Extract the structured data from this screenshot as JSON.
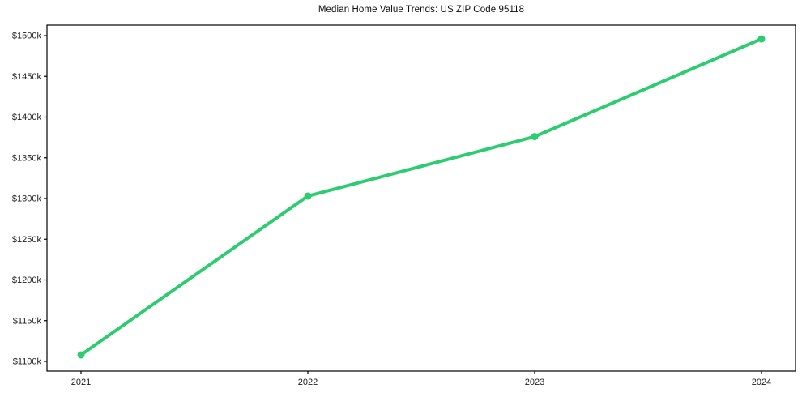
{
  "chart_data": {
    "type": "line",
    "title": "Median Home Value Trends: US ZIP Code 95118",
    "categories": [
      "2021",
      "2022",
      "2023",
      "2024"
    ],
    "series": [
      {
        "values": [
          1108,
          1303,
          1376,
          1496
        ],
        "color": "#2ecc71"
      }
    ],
    "xlabel": "",
    "ylabel": "",
    "ylim": [
      1100,
      1500
    ],
    "ytick_values": [
      1100,
      1150,
      1200,
      1250,
      1300,
      1350,
      1400,
      1450,
      1500
    ],
    "ytick_labels": [
      "$1100k",
      "$1150k",
      "$1200k",
      "$1250k",
      "$1300k",
      "$1350k",
      "$1400k",
      "$1450k",
      "$1500k"
    ],
    "grid": false,
    "legend": "none",
    "marker": "circle",
    "line_width": 4,
    "axis_color": "#000000",
    "text_color": "#1c1c1c",
    "background": "#ffffff"
  }
}
